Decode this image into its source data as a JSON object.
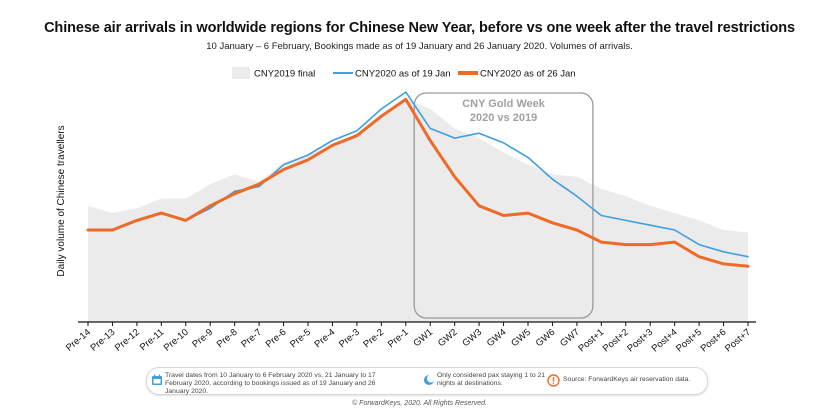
{
  "chart_data": {
    "type": "line",
    "title": "Chinese air arrivals in worldwide regions for Chinese New Year, before vs one week after the travel restrictions",
    "subtitle": "10 January – 6 February, Bookings made as of 19 January and 26 January 2020. Volumes of arrivals.",
    "ylabel": "Daily volume of Chinese travellers",
    "xlabel": "",
    "ylim": [
      0,
      100
    ],
    "grid": false,
    "legend_position": "top",
    "categories": [
      "Pre-14",
      "Pre-13",
      "Pre-12",
      "Pre-11",
      "Pre-10",
      "Pre-9",
      "Pre-8",
      "Pre-7",
      "Pre-6",
      "Pre-5",
      "Pre-4",
      "Pre-3",
      "Pre-2",
      "Pre-1",
      "GW1",
      "GW2",
      "GW3",
      "GW4",
      "GW5",
      "GW6",
      "GW7",
      "Post+1",
      "Post+2",
      "Post+3",
      "Post+4",
      "Post+5",
      "Post+6",
      "Post+7"
    ],
    "series": [
      {
        "name": "CNY2019 final",
        "kind": "area",
        "color": "#ebebeb",
        "values": [
          48,
          45,
          47,
          51,
          51,
          57,
          61,
          58,
          66,
          69,
          73,
          78,
          86,
          92,
          88,
          80,
          76,
          70,
          65,
          61,
          60,
          55,
          52,
          48,
          45,
          42,
          38,
          37
        ]
      },
      {
        "name": "CNY2020 as of 19 Jan",
        "kind": "line",
        "color": "#3f9fe0",
        "values": [
          38,
          38,
          42,
          45,
          42,
          47,
          54,
          56,
          65,
          69,
          75,
          79,
          88,
          95,
          80,
          76,
          78,
          74,
          68,
          59,
          52,
          44,
          42,
          40,
          38,
          32,
          29,
          27
        ]
      },
      {
        "name": "CNY2020 as of 26 Jan",
        "kind": "line",
        "color": "#ee6a26",
        "values": [
          38,
          38,
          42,
          45,
          42,
          48,
          53,
          57,
          63,
          67,
          73,
          77,
          85,
          92,
          75,
          60,
          48,
          44,
          45,
          41,
          38,
          33,
          32,
          32,
          33,
          27,
          24,
          23
        ]
      }
    ],
    "annotation": {
      "title": "CNY Gold Week",
      "subtitle": "2020 vs 2019",
      "from": "GW1",
      "to": "GW7"
    }
  },
  "footer": {
    "note_travel": "Travel dates from 10 January to 6 February 2020 vs. 21 January to 17 February 2020, according to bookings issued as of 19 January and 26 January 2020.",
    "note_stay": "Only considered pax staying 1 to 21 nights at destinations.",
    "note_source": "Source: ForwardKeys air reservation data.",
    "copyright": "© ForwardKeys, 2020. All Rights Reserved."
  }
}
